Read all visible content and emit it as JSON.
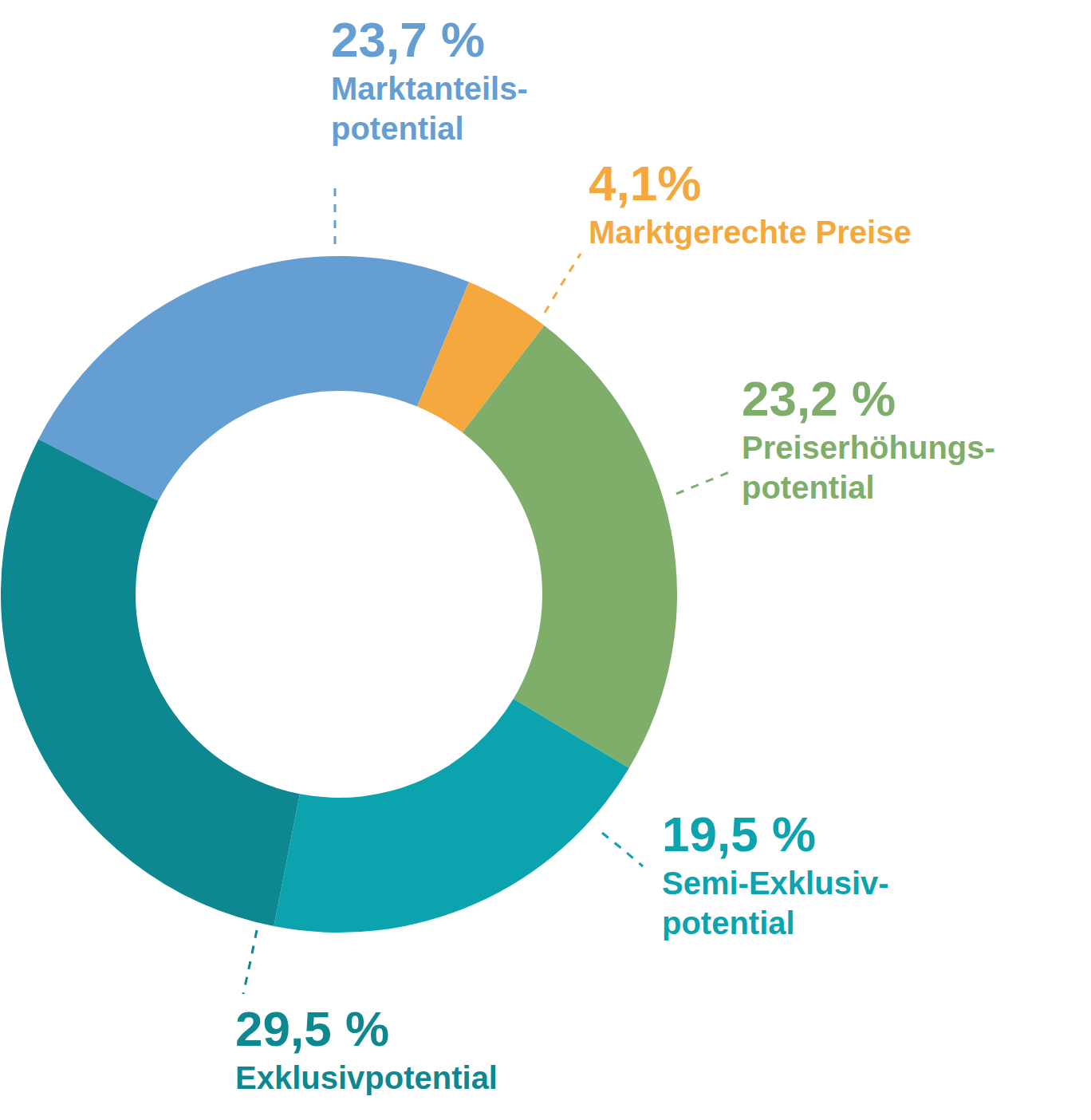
{
  "chart_data": {
    "type": "pie",
    "categories": [
      "Marktanteils-\npotential",
      "Marktgerechte Preise",
      "Preiserhöhungs-\npotential",
      "Semi-Exklusiv-\npotential",
      "Exklusivpotential"
    ],
    "values": [
      23.7,
      4.1,
      23.2,
      19.5,
      29.5
    ],
    "value_labels": [
      "23,7 %",
      "4,1%",
      "23,2 %",
      "19,5 %",
      "29,5 %"
    ],
    "colors": [
      "#659ed3",
      "#f4a83e",
      "#7fae6a",
      "#0aa3ae",
      "#0e8890"
    ],
    "data_labels": true
  }
}
